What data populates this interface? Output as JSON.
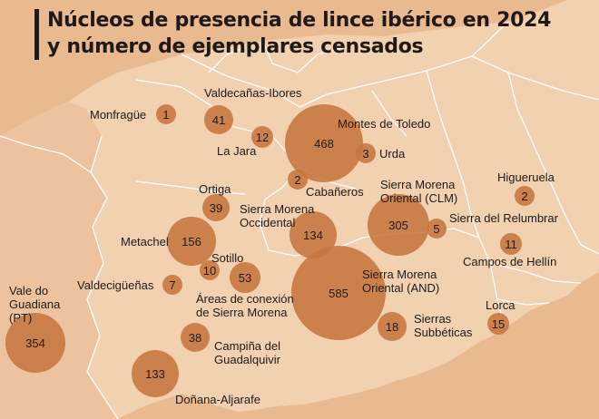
{
  "title": {
    "line1": "Núcleos de presencia de lince ibérico en 2024",
    "line2": "y número de ejemplares censados"
  },
  "colors": {
    "land_light": "#f2d1b1",
    "land_dark": "#e9b98f",
    "circle_fill": "#c6753f",
    "text": "#1f1a17"
  },
  "nuclei": [
    {
      "id": "monfrague",
      "name": "Monfragüe",
      "count": 1
    },
    {
      "id": "valdecanas",
      "name": "Valdecañas-Ibores",
      "count": 41
    },
    {
      "id": "la-jara",
      "name": "La Jara",
      "count": 12
    },
    {
      "id": "montes-toledo",
      "name": "Montes de Toledo",
      "count": 468
    },
    {
      "id": "urda",
      "name": "Urda",
      "count": 3
    },
    {
      "id": "cabaneros",
      "name": "Cabañeros",
      "count": 2
    },
    {
      "id": "ortiga",
      "name": "Ortiga",
      "count": 39
    },
    {
      "id": "sm-occidental",
      "name": "Sierra Morena Occidental",
      "count": 134
    },
    {
      "id": "sm-oriental-clm",
      "name": "Sierra Morena Oriental (CLM)",
      "count": 305
    },
    {
      "id": "relumbrar",
      "name": "Sierra del Relumbrar",
      "count": 5
    },
    {
      "id": "higueruela",
      "name": "Higueruela",
      "count": 2
    },
    {
      "id": "campos-hellin",
      "name": "Campos de Hellín",
      "count": 11
    },
    {
      "id": "metachel",
      "name": "Metachel",
      "count": 156
    },
    {
      "id": "sotillo",
      "name": "Sotillo",
      "count": 10
    },
    {
      "id": "areas-conexion",
      "name": "Áreas de conexión de Sierra Morena",
      "count": 53
    },
    {
      "id": "valdeciguenas",
      "name": "Valdecigüeñas",
      "count": 7
    },
    {
      "id": "sm-oriental-and",
      "name": "Sierra Morena Oriental (AND)",
      "count": 585
    },
    {
      "id": "lorca",
      "name": "Lorca",
      "count": 15
    },
    {
      "id": "subbeticas",
      "name": "Sierras Subbéticas",
      "count": 18
    },
    {
      "id": "campina",
      "name": "Campiña del Guadalquivir",
      "count": 38
    },
    {
      "id": "vale-guadiana",
      "name": "Vale do Guadiana (PT)",
      "count": 354
    },
    {
      "id": "donana",
      "name": "Doñana-Aljarafe",
      "count": 133
    }
  ]
}
